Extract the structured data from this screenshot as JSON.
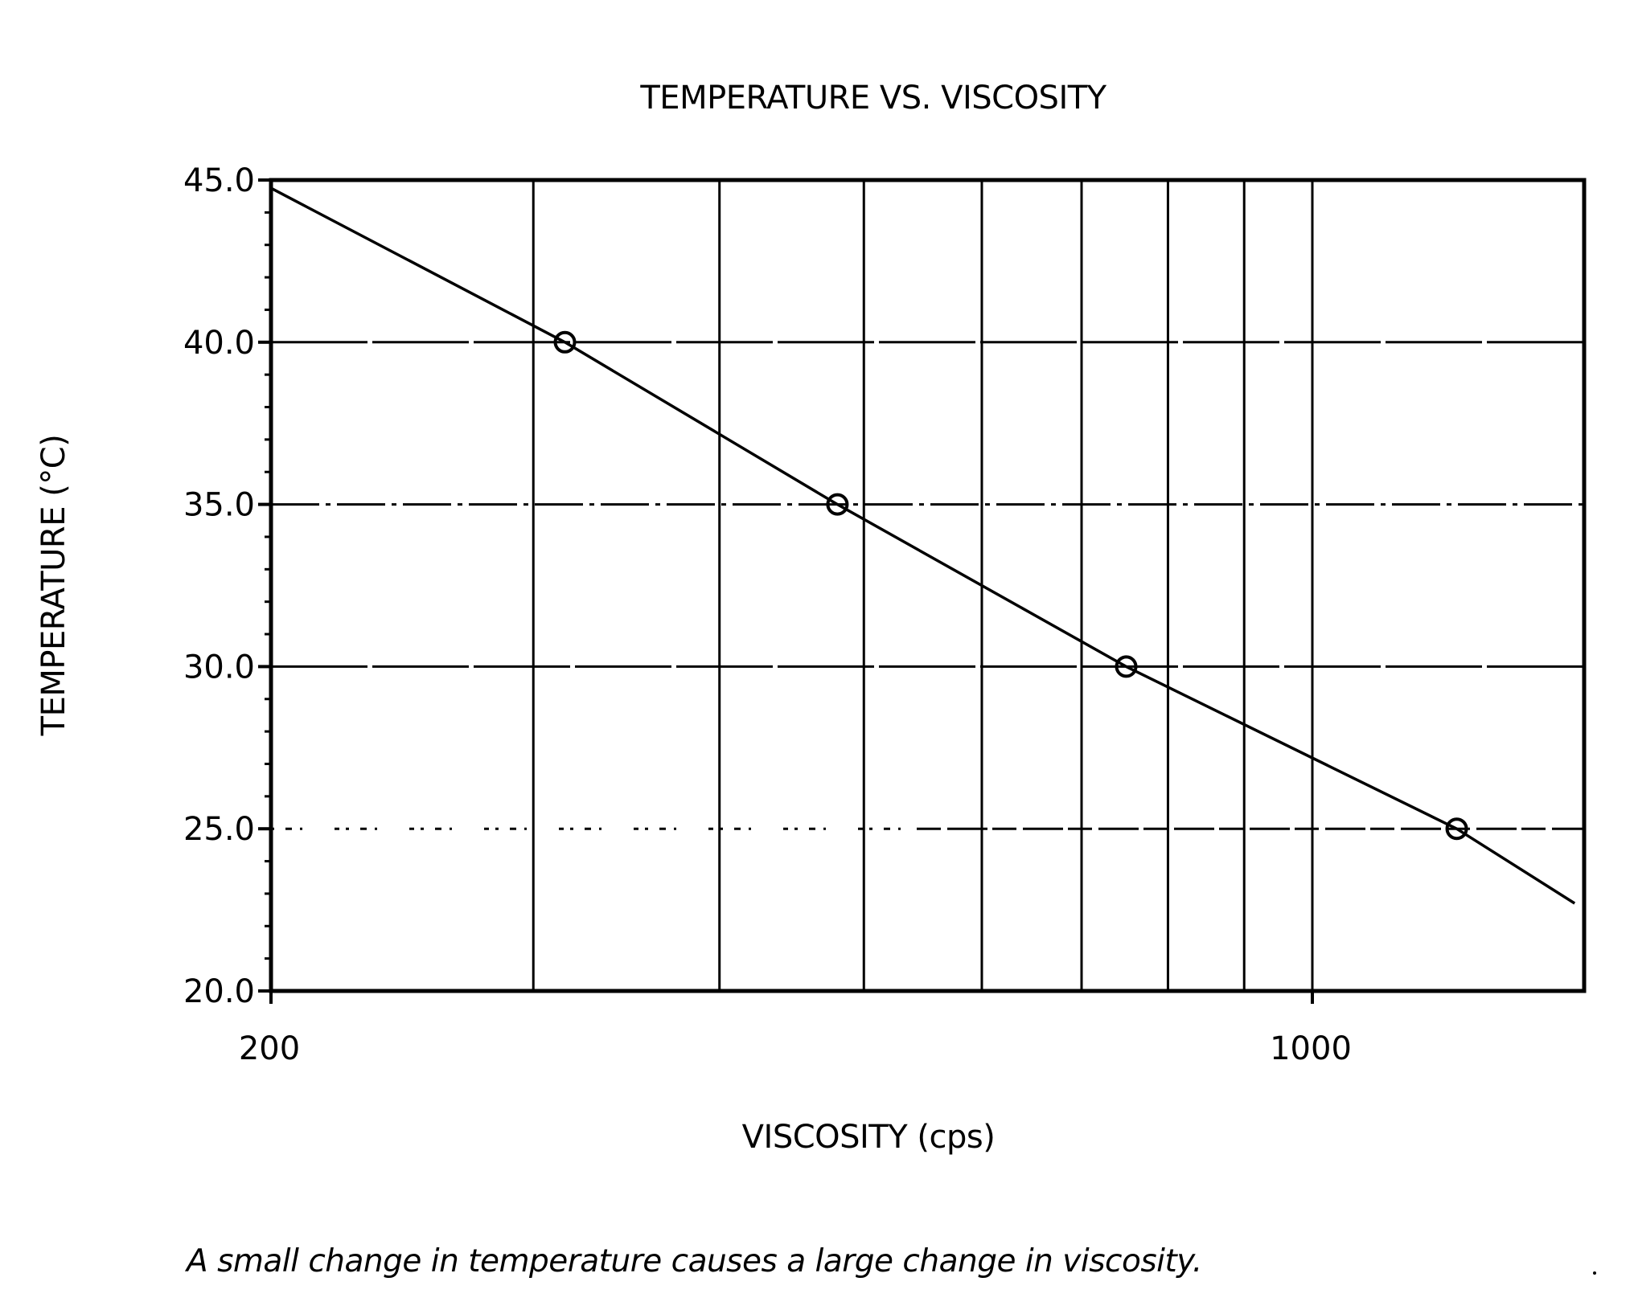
{
  "chart_data": {
    "type": "line",
    "title": "TEMPERATURE VS. VISCOSITY",
    "xlabel": "VISCOSITY (cps)",
    "ylabel": "TEMPERATURE (°C)",
    "caption": "A small change in temperature causes a large change in viscosity.",
    "x_scale": "log",
    "xlim": [
      200,
      1500
    ],
    "ylim": [
      20.0,
      45.0
    ],
    "x_tick_labels": [
      {
        "value": 200,
        "label": "200"
      },
      {
        "value": 1000,
        "label": "1000"
      }
    ],
    "x_gridlines": [
      300,
      400,
      500,
      600,
      700,
      800,
      900,
      1000
    ],
    "y_tick_labels": [
      {
        "value": 45.0,
        "label": "45.0"
      },
      {
        "value": 40.0,
        "label": "40.0"
      },
      {
        "value": 35.0,
        "label": "35.0"
      },
      {
        "value": 30.0,
        "label": "30.0"
      },
      {
        "value": 25.0,
        "label": "25.0"
      },
      {
        "value": 20.0,
        "label": "20.0"
      }
    ],
    "y_minor_step": 1.0,
    "grid": true,
    "legend": "none",
    "series": [
      {
        "name": "Temperature vs. Viscosity",
        "line": [
          {
            "x": 200,
            "y": 44.75
          },
          {
            "x": 315,
            "y": 40.0
          },
          {
            "x": 480,
            "y": 35.0
          },
          {
            "x": 750,
            "y": 30.0
          },
          {
            "x": 1250,
            "y": 25.0
          },
          {
            "x": 1500,
            "y": 22.7
          }
        ],
        "markers": [
          {
            "x": 315,
            "y": 40.0
          },
          {
            "x": 480,
            "y": 35.0
          },
          {
            "x": 750,
            "y": 30.0
          },
          {
            "x": 1250,
            "y": 25.0
          }
        ]
      }
    ]
  },
  "colors": {
    "ink": "#000000",
    "background": "#ffffff"
  }
}
